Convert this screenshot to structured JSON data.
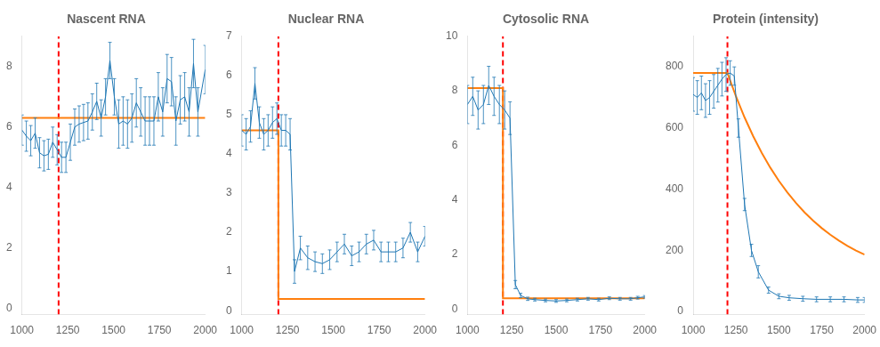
{
  "chart_data": [
    {
      "type": "line",
      "title": "Nascent RNA",
      "grid": false,
      "xlim": [
        1000,
        2000
      ],
      "xticks": [
        1000,
        1250,
        1500,
        1750,
        2000
      ],
      "ylim": [
        -0.2,
        9
      ],
      "yticks": [
        0,
        2,
        4,
        6,
        8
      ],
      "series": [
        {
          "color": "#1f77b4",
          "line_style": "solid",
          "x": [
            1000,
            1024,
            1048,
            1072,
            1096,
            1120,
            1144,
            1168,
            1192,
            1216,
            1240,
            1264,
            1288,
            1312,
            1336,
            1360,
            1384,
            1408,
            1432,
            1456,
            1480,
            1504,
            1528,
            1552,
            1576,
            1600,
            1624,
            1648,
            1672,
            1696,
            1720,
            1744,
            1768,
            1792,
            1816,
            1840,
            1864,
            1888,
            1912,
            1936,
            1960,
            2000
          ],
          "values": [
            5.9,
            5.7,
            5.55,
            5.8,
            5.15,
            5.05,
            5.1,
            5.5,
            5.25,
            5.0,
            5.0,
            5.5,
            6.0,
            6.1,
            6.15,
            6.2,
            6.5,
            6.85,
            6.3,
            7.0,
            8.2,
            7.0,
            6.1,
            6.2,
            6.1,
            6.3,
            6.8,
            6.5,
            6.2,
            6.2,
            6.2,
            7.0,
            6.5,
            7.6,
            7.5,
            6.2,
            6.9,
            7.0,
            6.5,
            8.1,
            6.5,
            7.9
          ],
          "errors": [
            0.5,
            0.5,
            0.5,
            0.5,
            0.5,
            0.5,
            0.5,
            0.5,
            0.5,
            0.5,
            0.5,
            0.6,
            0.6,
            0.6,
            0.6,
            0.6,
            0.6,
            0.6,
            0.6,
            0.6,
            0.6,
            0.6,
            0.8,
            0.8,
            0.8,
            0.8,
            0.8,
            0.8,
            0.8,
            0.8,
            0.8,
            0.8,
            0.8,
            0.8,
            0.8,
            0.8,
            0.8,
            0.8,
            0.8,
            0.8,
            0.8,
            0.8
          ]
        },
        {
          "color": "#ff7f0e",
          "line_style": "solid",
          "x": [
            1000,
            2000
          ],
          "values": [
            6.3,
            6.3
          ]
        },
        {
          "color": "red",
          "line_style": "dashed",
          "x": [
            1200,
            1200
          ],
          "values": [
            -0.2,
            9
          ]
        }
      ]
    },
    {
      "type": "line",
      "title": "Nuclear RNA",
      "grid": false,
      "xlim": [
        1000,
        2000
      ],
      "xticks": [
        1000,
        1250,
        1500,
        1750,
        2000
      ],
      "ylim": [
        -0.1,
        7
      ],
      "yticks": [
        0,
        1,
        2,
        3,
        4,
        5,
        6,
        7
      ],
      "series": [
        {
          "color": "#1f77b4",
          "line_style": "solid",
          "x": [
            1000,
            1024,
            1048,
            1072,
            1096,
            1120,
            1144,
            1168,
            1192,
            1216,
            1240,
            1264,
            1288,
            1320,
            1360,
            1400,
            1440,
            1480,
            1520,
            1560,
            1600,
            1640,
            1680,
            1720,
            1760,
            1800,
            1840,
            1880,
            1920,
            1960,
            2000
          ],
          "values": [
            4.6,
            4.5,
            4.7,
            5.8,
            4.8,
            4.5,
            4.6,
            4.8,
            4.9,
            4.6,
            4.6,
            4.5,
            1.0,
            1.6,
            1.35,
            1.25,
            1.2,
            1.3,
            1.5,
            1.7,
            1.4,
            1.5,
            1.7,
            1.8,
            1.5,
            1.5,
            1.5,
            1.6,
            2.0,
            1.5,
            1.9
          ],
          "errors": [
            0.4,
            0.4,
            0.4,
            0.4,
            0.4,
            0.4,
            0.4,
            0.4,
            0.4,
            0.4,
            0.4,
            0.4,
            0.3,
            0.3,
            0.3,
            0.25,
            0.25,
            0.25,
            0.25,
            0.25,
            0.25,
            0.25,
            0.25,
            0.25,
            0.25,
            0.25,
            0.25,
            0.25,
            0.25,
            0.25,
            0.25
          ]
        },
        {
          "color": "#ff7f0e",
          "line_style": "solid",
          "x": [
            1000,
            1199.99,
            1200,
            2000
          ],
          "values": [
            4.6,
            4.6,
            0.3,
            0.3
          ]
        },
        {
          "color": "red",
          "line_style": "dashed",
          "x": [
            1200,
            1200
          ],
          "values": [
            -0.1,
            7
          ]
        }
      ]
    },
    {
      "type": "line",
      "title": "Cytosolic RNA",
      "grid": false,
      "xlim": [
        1000,
        2000
      ],
      "xticks": [
        1000,
        1250,
        1500,
        1750,
        2000
      ],
      "ylim": [
        -0.2,
        10
      ],
      "yticks": [
        0,
        2,
        4,
        6,
        8,
        10
      ],
      "series": [
        {
          "color": "#1f77b4",
          "line_style": "solid",
          "x": [
            1000,
            1030,
            1060,
            1090,
            1120,
            1150,
            1180,
            1210,
            1240,
            1270,
            1300,
            1340,
            1380,
            1440,
            1500,
            1560,
            1620,
            1680,
            1740,
            1800,
            1860,
            1920,
            1960,
            2000
          ],
          "values": [
            7.5,
            7.8,
            7.3,
            7.5,
            8.2,
            7.8,
            7.5,
            7.3,
            7.0,
            0.9,
            0.5,
            0.38,
            0.35,
            0.32,
            0.3,
            0.32,
            0.35,
            0.38,
            0.35,
            0.4,
            0.38,
            0.38,
            0.42,
            0.45
          ],
          "errors": [
            0.7,
            0.7,
            0.7,
            0.7,
            0.7,
            0.7,
            0.7,
            0.7,
            0.6,
            0.15,
            0.08,
            0.06,
            0.05,
            0.05,
            0.05,
            0.05,
            0.05,
            0.05,
            0.05,
            0.05,
            0.05,
            0.05,
            0.05,
            0.05
          ]
        },
        {
          "color": "#ff7f0e",
          "line_style": "solid",
          "x": [
            1000,
            1199.99,
            1200,
            2000
          ],
          "values": [
            8.1,
            8.1,
            0.4,
            0.4
          ]
        },
        {
          "color": "red",
          "line_style": "dashed",
          "x": [
            1200,
            1200
          ],
          "values": [
            -0.2,
            10
          ]
        }
      ]
    },
    {
      "type": "line",
      "title": "Protein (intensity)",
      "grid": false,
      "xlim": [
        1000,
        2000
      ],
      "xticks": [
        1000,
        1250,
        1500,
        1750,
        2000
      ],
      "ylim": [
        -10,
        900
      ],
      "yticks": [
        0,
        200,
        400,
        600,
        800
      ],
      "series": [
        {
          "color": "#1f77b4",
          "line_style": "solid",
          "x": [
            1000,
            1024,
            1048,
            1072,
            1096,
            1120,
            1144,
            1168,
            1192,
            1216,
            1240,
            1264,
            1300,
            1340,
            1380,
            1440,
            1500,
            1560,
            1640,
            1720,
            1800,
            1880,
            1960,
            2000
          ],
          "values": [
            710,
            700,
            715,
            690,
            700,
            720,
            740,
            760,
            775,
            780,
            770,
            600,
            350,
            200,
            130,
            70,
            50,
            45,
            42,
            40,
            40,
            40,
            38,
            38
          ],
          "errors": [
            55,
            55,
            55,
            55,
            55,
            55,
            55,
            55,
            55,
            40,
            30,
            30,
            20,
            20,
            20,
            10,
            8,
            8,
            8,
            8,
            8,
            8,
            8,
            8
          ]
        },
        {
          "color": "#ff7f0e",
          "line_style": "solid",
          "x": [
            1000,
            1200,
            1250,
            1300,
            1350,
            1400,
            1450,
            1500,
            1550,
            1600,
            1650,
            1700,
            1750,
            1800,
            1850,
            1900,
            1950,
            2000
          ],
          "values": [
            780,
            780,
            703.08,
            634.56,
            573.51,
            519.12,
            470.67,
            427.5,
            389.04,
            354.78,
            324.25,
            297.06,
            272.83,
            251.25,
            232.02,
            214.89,
            199.63,
            186.03
          ]
        },
        {
          "color": "red",
          "line_style": "dashed",
          "x": [
            1200,
            1200
          ],
          "values": [
            -10,
            900
          ]
        }
      ]
    }
  ]
}
